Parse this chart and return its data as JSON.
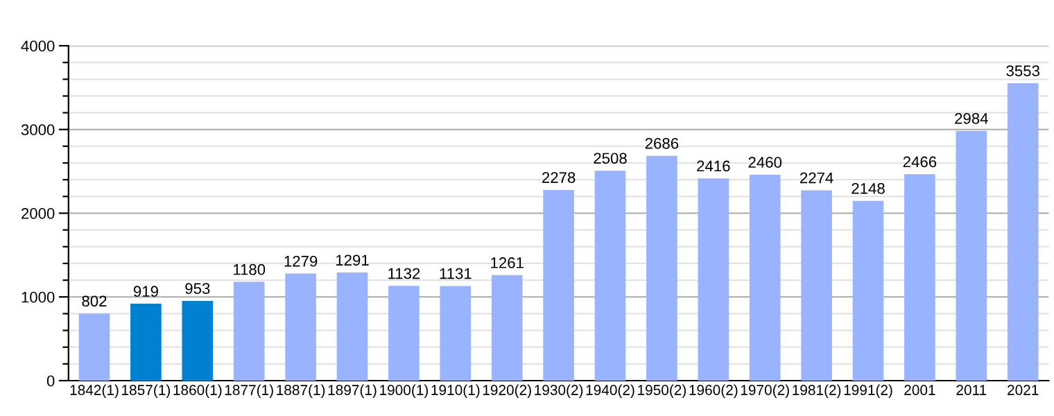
{
  "chart_data": {
    "type": "bar",
    "categories": [
      "1842(1)",
      "1857(1)",
      "1860(1)",
      "1877(1)",
      "1887(1)",
      "1897(1)",
      "1900(1)",
      "1910(1)",
      "1920(2)",
      "1930(2)",
      "1940(2)",
      "1950(2)",
      "1960(2)",
      "1970(2)",
      "1981(2)",
      "1991(2)",
      "2001",
      "2011",
      "2021"
    ],
    "values": [
      802,
      919,
      953,
      1180,
      1279,
      1291,
      1132,
      1131,
      1261,
      2278,
      2508,
      2686,
      2416,
      2460,
      2274,
      2148,
      2466,
      2984,
      3553
    ],
    "colors": [
      "#99b3ff",
      "#0080d0",
      "#0080d0",
      "#99b3ff",
      "#99b3ff",
      "#99b3ff",
      "#99b3ff",
      "#99b3ff",
      "#99b3ff",
      "#99b3ff",
      "#99b3ff",
      "#99b3ff",
      "#99b3ff",
      "#99b3ff",
      "#99b3ff",
      "#99b3ff",
      "#99b3ff",
      "#99b3ff",
      "#99b3ff"
    ],
    "ylim": [
      0,
      4000
    ],
    "yticks": [
      0,
      {
        "value": 200,
        "label": null
      },
      {
        "value": 400,
        "label": null
      },
      {
        "value": 600,
        "label": null
      },
      {
        "value": 800,
        "label": null
      },
      1000,
      {
        "value": 1200,
        "label": null
      },
      {
        "value": 1400,
        "label": null
      },
      {
        "value": 1600,
        "label": null
      },
      {
        "value": 1800,
        "label": null
      },
      2000,
      {
        "value": 2200,
        "label": null
      },
      {
        "value": 2400,
        "label": null
      },
      {
        "value": 2600,
        "label": null
      },
      {
        "value": 2800,
        "label": null
      },
      3000,
      {
        "value": 3200,
        "label": null
      },
      {
        "value": 3400,
        "label": null
      },
      {
        "value": 3600,
        "label": null
      },
      {
        "value": 3800,
        "label": null
      },
      4000
    ],
    "grid": "y",
    "data_labels": true
  }
}
